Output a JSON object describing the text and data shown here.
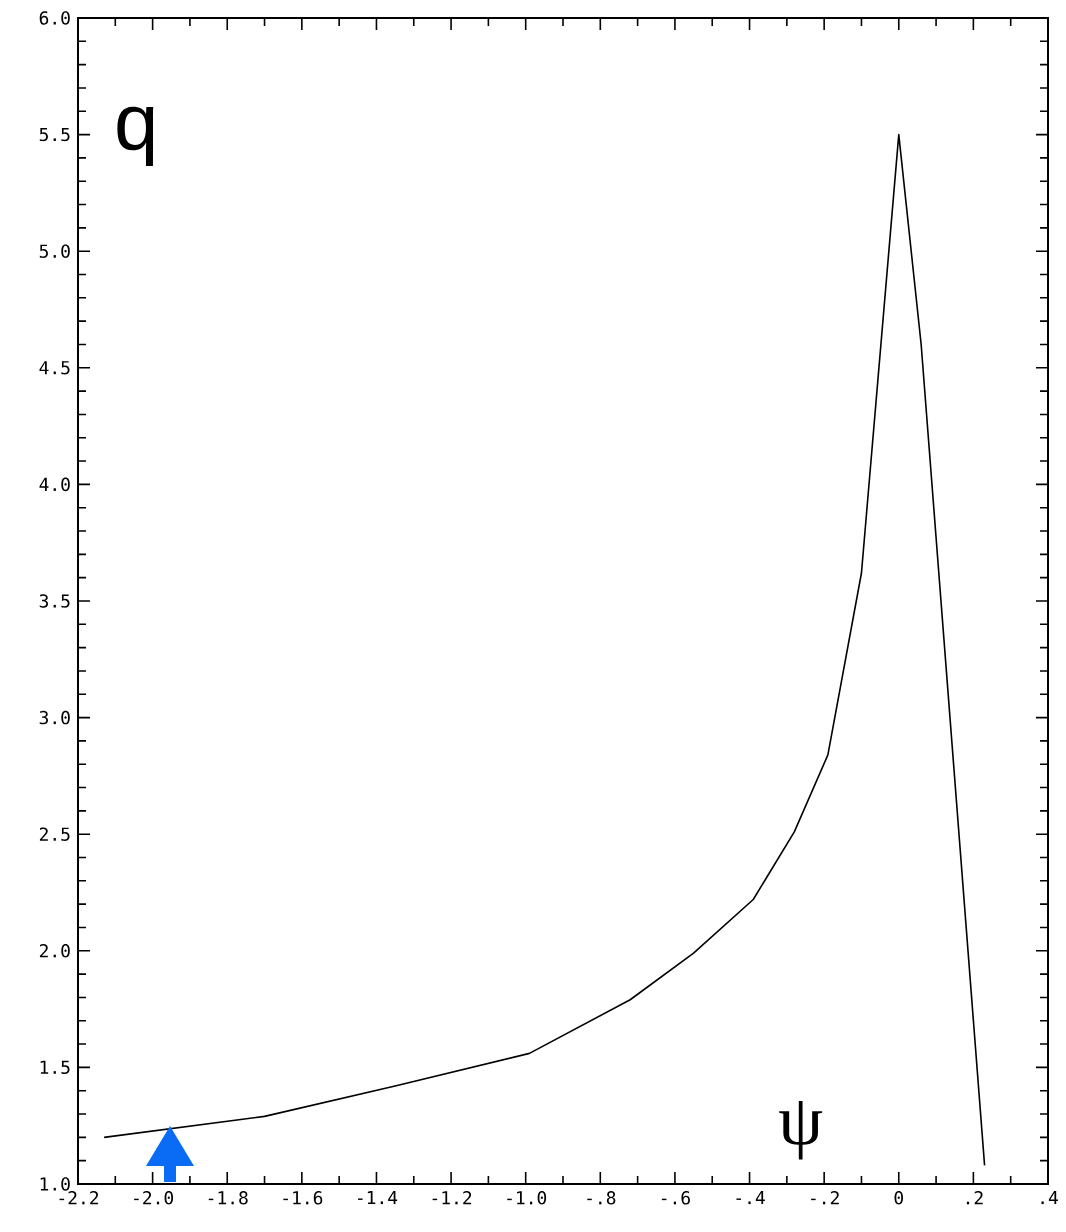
{
  "chart_data": {
    "type": "line",
    "xlabel": "ψ",
    "ylabel": "q",
    "x": [
      -2.13,
      -1.7,
      -1.35,
      -0.99,
      -0.72,
      -0.55,
      -0.39,
      -0.28,
      -0.19,
      -0.1,
      0.0,
      0.06,
      0.23
    ],
    "series": [
      {
        "color": "#000000",
        "values": [
          1.2,
          1.29,
          1.42,
          1.56,
          1.79,
          1.99,
          2.22,
          2.51,
          2.84,
          3.62,
          5.5,
          4.6,
          1.08
        ]
      }
    ],
    "xlim": [
      -2.2,
      0.4
    ],
    "xticks": [
      -2.2,
      {
        "value": -2.0,
        "label": "-2.0"
      },
      -1.8,
      -1.6,
      -1.4,
      -1.2,
      {
        "value": -1.0,
        "label": "-1.0"
      },
      {
        "value": -0.8,
        "label": "-.8"
      },
      {
        "value": -0.6,
        "label": "-.6"
      },
      {
        "value": -0.4,
        "label": "-.4"
      },
      {
        "value": -0.2,
        "label": "-.2"
      },
      0,
      {
        "value": 0.2,
        "label": ".2"
      },
      {
        "value": 0.4,
        "label": ".4"
      }
    ],
    "ylim": [
      1.0,
      6.0
    ],
    "yticks": [
      {
        "value": 1.0,
        "label": "1.0"
      },
      1.5,
      {
        "value": 2.0,
        "label": "2.0"
      },
      2.5,
      {
        "value": 3.0,
        "label": "3.0"
      },
      3.5,
      {
        "value": 4.0,
        "label": "4.0"
      },
      4.5,
      {
        "value": 5.0,
        "label": "5.0"
      },
      5.5,
      {
        "value": 6.0,
        "label": "6.0"
      }
    ],
    "marker": "none",
    "line_style": "solid",
    "grid": false
  }
}
